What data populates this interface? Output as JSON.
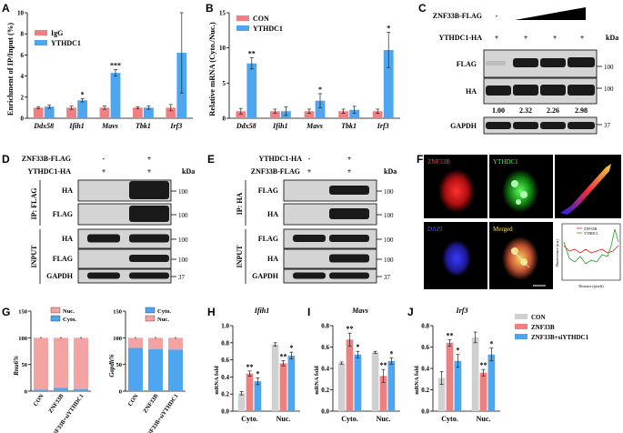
{
  "panels": {
    "A": {
      "label": "A",
      "ylabel": "Enrichment of IP/Input (%)",
      "legend": [
        "IgG",
        "YTHDC1"
      ],
      "categories": [
        "Ddx58",
        "Ifih1",
        "Mavs",
        "Tbk1",
        "Irf3"
      ],
      "yticks": [
        "0",
        "2",
        "4",
        "6",
        "8",
        "10"
      ],
      "stars": [
        "",
        "*",
        "***",
        "",
        ""
      ]
    },
    "B": {
      "label": "B",
      "ylabel": "Relative mRNA (Cyto./Nuc.)",
      "legend": [
        "CON",
        "YTHDC1"
      ],
      "categories": [
        "Ddx58",
        "Ifih1",
        "Mavs",
        "Tbk1",
        "Irf3"
      ],
      "yticks": [
        "0",
        "5",
        "10",
        "15"
      ],
      "stars": [
        "**",
        "",
        "*",
        "",
        "*"
      ]
    },
    "C": {
      "label": "C",
      "row1_label": "ZNF33B-FLAG",
      "row1_first": "-",
      "row2_label": "YTHDC1-HA",
      "row2_vals": [
        "+",
        "+",
        "+",
        "+"
      ],
      "blots": [
        "FLAG",
        "HA",
        "GAPDH"
      ],
      "kda": "kDa",
      "markers": [
        "100",
        "100",
        "37"
      ],
      "quant": [
        "1.00",
        "2.32",
        "2.26",
        "2.98"
      ]
    },
    "D": {
      "label": "D",
      "row1_label": "ZNF33B-FLAG",
      "row1_vals": [
        "-",
        "+"
      ],
      "row2_label": "YTHDC1-HA",
      "row2_vals": [
        "+",
        "+"
      ],
      "kda": "kDa",
      "ip_label": "IP: FLAG",
      "input_label": "INPUT",
      "blots": [
        "HA",
        "FLAG",
        "HA",
        "FLAG",
        "GAPDH"
      ],
      "markers": [
        "100",
        "100",
        "100",
        "100",
        "37"
      ]
    },
    "E": {
      "label": "E",
      "row1_label": "YTHDC1-HA",
      "row1_vals": [
        "-",
        "+"
      ],
      "row2_label": "ZNF33B-FLAG",
      "row2_vals": [
        "+",
        "+"
      ],
      "kda": "kDa",
      "ip_label": "IP: HA",
      "input_label": "INPUT",
      "blots": [
        "FLAG",
        "HA",
        "FLAG",
        "HA",
        "GAPDH"
      ],
      "markers": [
        "100",
        "100",
        "100",
        "100",
        "37"
      ]
    },
    "F": {
      "label": "F",
      "img_labels": [
        "ZNF33B",
        "YTHDC1",
        "DAPI",
        "Merged"
      ],
      "profile_legend": [
        "ZNF33B",
        "YTHDC1"
      ],
      "profile_ylabel": "Fluorescence (a.u.)",
      "profile_xlabel": "Distance (pixels)"
    },
    "G": {
      "label": "G",
      "left_ylabel": "Rnu6%",
      "left_legend": [
        "Nuc.",
        "Cyto."
      ],
      "right_ylabel": "Gapdh%",
      "right_legend": [
        "Cyto.",
        "Nuc."
      ],
      "categories": [
        "CON",
        "ZNF33B",
        "ZNF33B+siYTHDC1"
      ],
      "yticks": [
        "0",
        "50",
        "100",
        "150"
      ]
    },
    "H": {
      "label": "H",
      "title": "Ifih1",
      "ylabel": "mRNA fold",
      "groups": [
        "Cyto.",
        "Nuc."
      ],
      "yticks": [
        "0.0",
        "0.2",
        "0.4",
        "0.6",
        "0.8",
        "1.0"
      ],
      "stars": [
        "",
        "**",
        "*",
        "",
        "**",
        "*"
      ]
    },
    "I": {
      "label": "I",
      "title": "Mavs",
      "ylabel": "mRNA fold",
      "groups": [
        "Cyto.",
        "Nuc."
      ],
      "yticks": [
        "0.0",
        "0.2",
        "0.4",
        "0.6",
        "0.8"
      ],
      "stars": [
        "",
        "**",
        "*",
        "",
        "**",
        "*"
      ]
    },
    "J": {
      "label": "J",
      "title": "Irf3",
      "ylabel": "mRNA fold",
      "groups": [
        "Cyto.",
        "Nuc."
      ],
      "yticks": [
        "0.0",
        "0.2",
        "0.4",
        "0.6",
        "0.8"
      ],
      "stars": [
        "",
        "**",
        "*",
        "",
        "**",
        "*"
      ],
      "legend": [
        "CON",
        "ZNF33B",
        "ZNF33B+siYTHDC1"
      ]
    }
  },
  "colors": {
    "gray": "#d0d0d0",
    "red": "#f08080",
    "blue": "#4da6ef",
    "pink": "#f4a3a3"
  },
  "chart_data": [
    {
      "type": "bar",
      "categories": [
        "Ddx58",
        "Ifih1",
        "Mavs",
        "Tbk1",
        "Irf3"
      ],
      "ylabel": "Enrichment of IP/Input (%)",
      "ylim": [
        0,
        10
      ],
      "series": [
        {
          "name": "IgG",
          "values": [
            1.0,
            1.0,
            1.0,
            1.0,
            1.0
          ],
          "err": [
            0.1,
            0.15,
            0.15,
            0.1,
            0.3
          ]
        },
        {
          "name": "YTHDC1",
          "values": [
            1.1,
            1.7,
            4.3,
            1.0,
            6.2
          ],
          "err": [
            0.15,
            0.15,
            0.3,
            0.15,
            3.8
          ]
        }
      ]
    },
    {
      "type": "bar",
      "categories": [
        "Ddx58",
        "Ifih1",
        "Mavs",
        "Tbk1",
        "Irf3"
      ],
      "ylabel": "Relative mRNA (Cyto./Nuc.)",
      "ylim": [
        0,
        15
      ],
      "series": [
        {
          "name": "CON",
          "values": [
            1.0,
            1.0,
            1.0,
            1.0,
            1.0
          ],
          "err": [
            0.4,
            0.3,
            0.3,
            0.3,
            0.3
          ]
        },
        {
          "name": "YTHDC1",
          "values": [
            7.8,
            1.0,
            2.5,
            1.2,
            9.7
          ],
          "err": [
            0.8,
            0.6,
            1.0,
            0.5,
            2.5
          ]
        }
      ]
    },
    {
      "type": "bar",
      "categories": [
        "CON",
        "ZNF33B",
        "ZNF33B+siYTHDC1"
      ],
      "ylabel": "Rnu6%",
      "ylim": [
        0,
        150
      ],
      "series": [
        {
          "name": "Cyto.",
          "values": [
            3,
            6,
            4
          ]
        },
        {
          "name": "Nuc.",
          "values": [
            97,
            94,
            96
          ]
        }
      ]
    },
    {
      "type": "bar",
      "categories": [
        "CON",
        "ZNF33B",
        "ZNF33B+siYTHDC1"
      ],
      "ylabel": "Gapdh%",
      "ylim": [
        0,
        150
      ],
      "series": [
        {
          "name": "Cyto.",
          "values": [
            81,
            79,
            78
          ]
        },
        {
          "name": "Nuc.",
          "values": [
            19,
            21,
            22
          ]
        }
      ]
    },
    {
      "type": "bar",
      "title": "Ifih1",
      "categories": [
        "Cyto.",
        "Nuc."
      ],
      "ylabel": "mRNA fold",
      "ylim": [
        0,
        1.0
      ],
      "series": [
        {
          "name": "CON",
          "values": [
            0.21,
            0.78
          ],
          "err": [
            0.02,
            0.02
          ]
        },
        {
          "name": "ZNF33B",
          "values": [
            0.44,
            0.56
          ],
          "err": [
            0.03,
            0.03
          ]
        },
        {
          "name": "ZNF33B+siYTHDC1",
          "values": [
            0.35,
            0.65
          ],
          "err": [
            0.04,
            0.04
          ]
        }
      ]
    },
    {
      "type": "bar",
      "title": "Mavs",
      "categories": [
        "Cyto.",
        "Nuc."
      ],
      "ylabel": "mRNA fold",
      "ylim": [
        0,
        0.8
      ],
      "series": [
        {
          "name": "CON",
          "values": [
            0.45,
            0.55
          ],
          "err": [
            0.01,
            0.01
          ]
        },
        {
          "name": "ZNF33B",
          "values": [
            0.67,
            0.33
          ],
          "err": [
            0.06,
            0.06
          ]
        },
        {
          "name": "ZNF33B+siYTHDC1",
          "values": [
            0.53,
            0.47
          ],
          "err": [
            0.03,
            0.03
          ]
        }
      ]
    },
    {
      "type": "bar",
      "title": "Irf3",
      "categories": [
        "Cyto.",
        "Nuc."
      ],
      "ylabel": "mRNA fold",
      "ylim": [
        0,
        0.8
      ],
      "series": [
        {
          "name": "CON",
          "values": [
            0.31,
            0.69
          ],
          "err": [
            0.06,
            0.05
          ]
        },
        {
          "name": "ZNF33B",
          "values": [
            0.64,
            0.36
          ],
          "err": [
            0.03,
            0.03
          ]
        },
        {
          "name": "ZNF33B+siYTHDC1",
          "values": [
            0.47,
            0.53
          ],
          "err": [
            0.06,
            0.06
          ]
        }
      ]
    }
  ]
}
